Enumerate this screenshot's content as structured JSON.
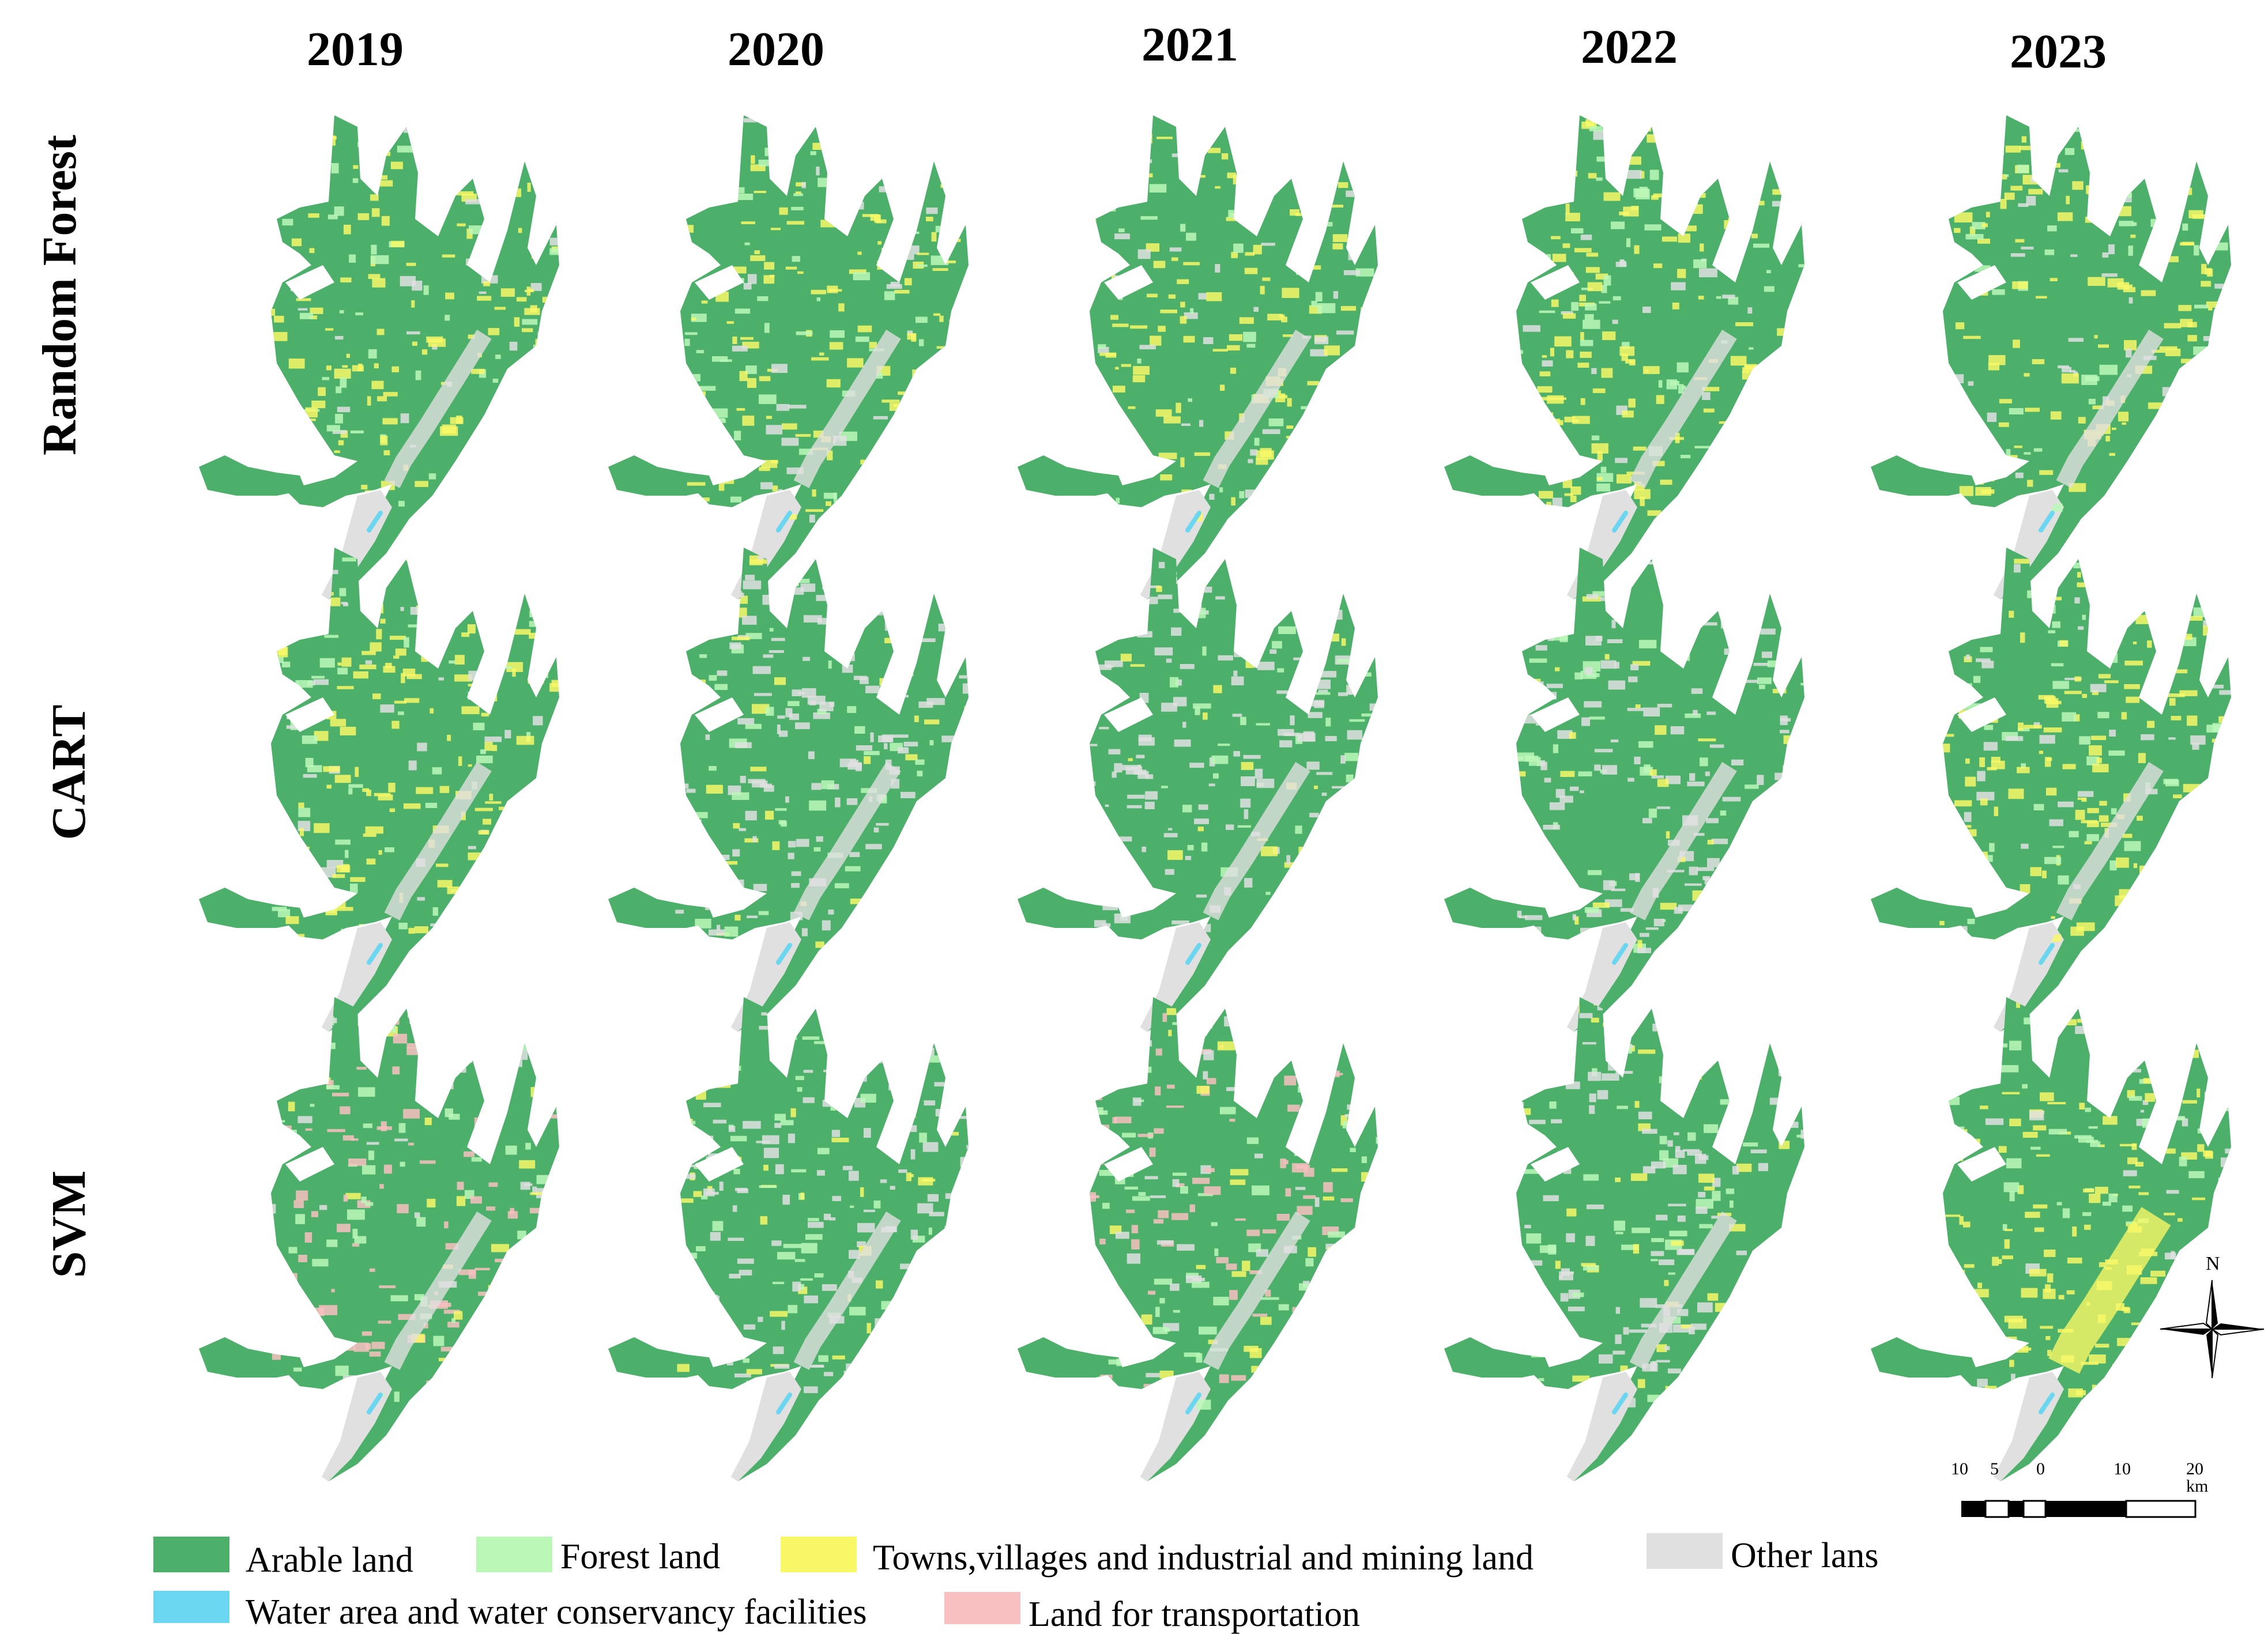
{
  "years": [
    "2019",
    "2020",
    "2021",
    "2022",
    "2023"
  ],
  "methods": [
    "Random Forest",
    "CART",
    "SVM"
  ],
  "legend": [
    {
      "label": "Arable land",
      "color": "#4db06a"
    },
    {
      "label": "Forest land",
      "color": "#bbf8b8"
    },
    {
      "label": "Towns,villages and industrial and mining land",
      "color": "#f8f867"
    },
    {
      "label": "Other lans",
      "color": "#e0e0e0"
    },
    {
      "label": "Water area and water conservancy facilities",
      "color": "#6ad6ef"
    },
    {
      "label": "Land for transportation",
      "color": "#f8c0c0"
    }
  ],
  "scale_bar": {
    "ticks": [
      "10",
      "5",
      "0",
      "10",
      "20 km"
    ]
  },
  "north_arrow": {
    "label": "N"
  },
  "panels": [
    {
      "year": "2019",
      "method": "Random Forest",
      "dominant": "arable land",
      "secondary": "towns,villages and industrial and mining land"
    },
    {
      "year": "2020",
      "method": "Random Forest",
      "dominant": "arable land",
      "secondary": "towns,villages and industrial and mining land"
    },
    {
      "year": "2021",
      "method": "Random Forest",
      "dominant": "arable land",
      "secondary": "towns,villages and industrial and mining land"
    },
    {
      "year": "2022",
      "method": "Random Forest",
      "dominant": "arable land",
      "secondary": "towns,villages and industrial and mining land"
    },
    {
      "year": "2023",
      "method": "Random Forest",
      "dominant": "arable land",
      "secondary": "towns,villages and industrial and mining land"
    },
    {
      "year": "2019",
      "method": "CART",
      "dominant": "arable land",
      "secondary": "towns,villages and industrial and mining land"
    },
    {
      "year": "2020",
      "method": "CART",
      "dominant": "arable land",
      "secondary": "other lans"
    },
    {
      "year": "2021",
      "method": "CART",
      "dominant": "arable land",
      "secondary": "other lans"
    },
    {
      "year": "2022",
      "method": "CART",
      "dominant": "arable land",
      "secondary": "other lans"
    },
    {
      "year": "2023",
      "method": "CART",
      "dominant": "arable land",
      "secondary": "towns,villages and industrial and mining land"
    },
    {
      "year": "2019",
      "method": "SVM",
      "dominant": "arable land",
      "secondary": "land for transportation"
    },
    {
      "year": "2020",
      "method": "SVM",
      "dominant": "arable land",
      "secondary": "other lans"
    },
    {
      "year": "2021",
      "method": "SVM",
      "dominant": "arable land",
      "secondary": "land for transportation"
    },
    {
      "year": "2022",
      "method": "SVM",
      "dominant": "arable land",
      "secondary": "other lans"
    },
    {
      "year": "2023",
      "method": "SVM",
      "dominant": "arable land",
      "secondary": "towns,villages and industrial and mining land"
    }
  ]
}
